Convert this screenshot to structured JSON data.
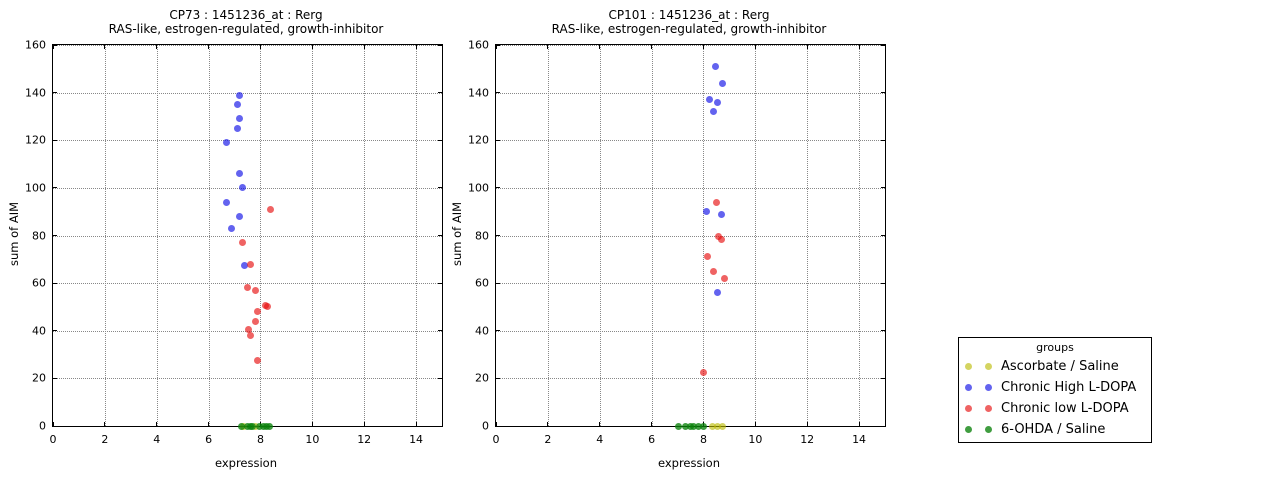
{
  "figure_bg": "#ffffff",
  "colors": {
    "ascorbate_saline": "rgba(185,185,0,0.62)",
    "chronic_high_ldopa": "rgba(15,15,230,0.65)",
    "chronic_low_ldopa": "rgba(230,15,15,0.65)",
    "ohda_saline": "rgba(10,130,10,0.78)",
    "grid": "#888888",
    "axis": "#000000"
  },
  "legend": {
    "title": "groups",
    "entries": [
      {
        "label": "Ascorbate / Saline",
        "color": "rgba(185,185,0,0.62)"
      },
      {
        "label": "Chronic High L-DOPA",
        "color": "rgba(15,15,230,0.65)"
      },
      {
        "label": "Chronic low L-DOPA",
        "color": "rgba(230,15,15,0.65)"
      },
      {
        "label": "6-OHDA / Saline",
        "color": "rgba(10,130,10,0.78)"
      }
    ]
  },
  "chart_data": [
    {
      "type": "scatter",
      "title": "CP73 : 1451236_at : Rerg",
      "subtitle": "RAS-like, estrogen-regulated, growth-inhibitor",
      "xlabel": "expression",
      "ylabel": "sum of AIM",
      "xlim": [
        0,
        15
      ],
      "ylim": [
        0,
        160
      ],
      "xticks": [
        0,
        2,
        4,
        6,
        8,
        10,
        12,
        14
      ],
      "yticks": [
        0,
        20,
        40,
        60,
        80,
        100,
        120,
        140,
        160
      ],
      "grid": true,
      "legend_position": "outside-right",
      "series": [
        {
          "name": "Ascorbate / Saline",
          "color": "rgba(185,185,0,0.62)",
          "points": [
            [
              7.35,
              0
            ],
            [
              7.8,
              0
            ]
          ]
        },
        {
          "name": "Chronic High L-DOPA",
          "color": "rgba(15,15,230,0.65)",
          "points": [
            [
              7.2,
              139
            ],
            [
              7.1,
              135
            ],
            [
              7.2,
              129
            ],
            [
              7.1,
              125
            ],
            [
              6.7,
              119
            ],
            [
              7.2,
              106
            ],
            [
              7.3,
              100
            ],
            [
              6.7,
              94
            ],
            [
              7.2,
              88
            ],
            [
              6.9,
              83
            ],
            [
              7.4,
              67.5
            ]
          ]
        },
        {
          "name": "Chronic low L-DOPA",
          "color": "rgba(230,15,15,0.65)",
          "points": [
            [
              8.4,
              91
            ],
            [
              7.3,
              77
            ],
            [
              7.6,
              68
            ],
            [
              7.5,
              58
            ],
            [
              7.8,
              57
            ],
            [
              8.18,
              50.5
            ],
            [
              8.28,
              50
            ],
            [
              7.9,
              48
            ],
            [
              7.8,
              44
            ],
            [
              7.55,
              40.5
            ],
            [
              7.62,
              38
            ],
            [
              7.9,
              27.5
            ]
          ]
        },
        {
          "name": "6-OHDA / Saline",
          "color": "rgba(10,130,10,0.78)",
          "points": [
            [
              7.25,
              0
            ],
            [
              7.5,
              0
            ],
            [
              7.6,
              0
            ],
            [
              7.7,
              0
            ],
            [
              7.95,
              0
            ],
            [
              8.1,
              0
            ],
            [
              8.25,
              0
            ],
            [
              8.35,
              0
            ]
          ]
        }
      ]
    },
    {
      "type": "scatter",
      "title": "CP101 : 1451236_at : Rerg",
      "subtitle": "RAS-like, estrogen-regulated, growth-inhibitor",
      "xlabel": "expression",
      "ylabel": "sum of AIM",
      "xlim": [
        0,
        15
      ],
      "ylim": [
        0,
        160
      ],
      "xticks": [
        0,
        2,
        4,
        6,
        8,
        10,
        12,
        14
      ],
      "yticks": [
        0,
        20,
        40,
        60,
        80,
        100,
        120,
        140,
        160
      ],
      "grid": true,
      "legend_position": "outside-right",
      "series": [
        {
          "name": "Ascorbate / Saline",
          "color": "rgba(185,185,0,0.62)",
          "points": [
            [
              8.35,
              0
            ],
            [
              8.55,
              0
            ],
            [
              8.75,
              0
            ]
          ]
        },
        {
          "name": "Chronic High L-DOPA",
          "color": "rgba(15,15,230,0.65)",
          "points": [
            [
              8.45,
              151
            ],
            [
              8.75,
              144
            ],
            [
              8.25,
              137
            ],
            [
              8.55,
              136
            ],
            [
              8.4,
              132
            ],
            [
              8.1,
              90
            ],
            [
              8.7,
              89
            ],
            [
              8.55,
              56
            ]
          ]
        },
        {
          "name": "Chronic low L-DOPA",
          "color": "rgba(230,15,15,0.65)",
          "points": [
            [
              8.5,
              94
            ],
            [
              8.58,
              79.5
            ],
            [
              8.68,
              78.5
            ],
            [
              8.15,
              71
            ],
            [
              8.4,
              65
            ],
            [
              8.8,
              62
            ],
            [
              8.0,
              22.5
            ]
          ]
        },
        {
          "name": "6-OHDA / Saline",
          "color": "rgba(10,130,10,0.78)",
          "points": [
            [
              7.05,
              0
            ],
            [
              7.3,
              0
            ],
            [
              7.5,
              0
            ],
            [
              7.62,
              0
            ],
            [
              7.8,
              0
            ],
            [
              8.0,
              0
            ]
          ]
        }
      ]
    }
  ],
  "layout_note": "two scatter subplots sharing identical axes"
}
